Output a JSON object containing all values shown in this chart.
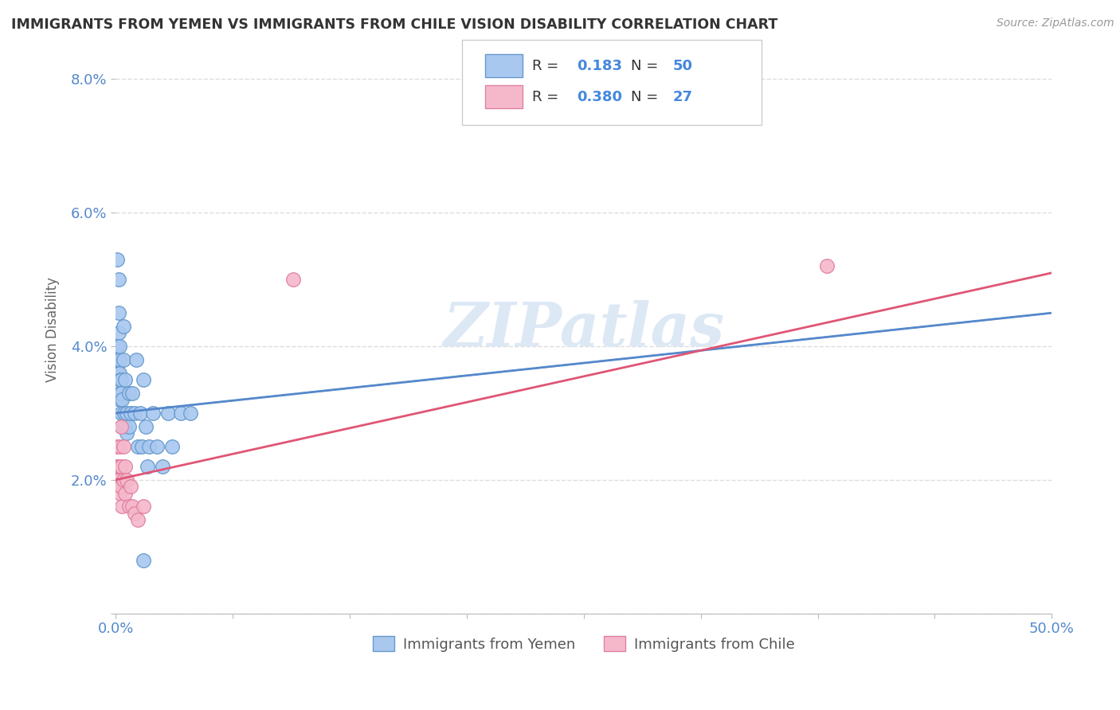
{
  "title": "IMMIGRANTS FROM YEMEN VS IMMIGRANTS FROM CHILE VISION DISABILITY CORRELATION CHART",
  "source": "Source: ZipAtlas.com",
  "ylabel": "Vision Disability",
  "xlim": [
    0.0,
    0.5
  ],
  "ylim": [
    0.0,
    0.085
  ],
  "xticks": [
    0.0,
    0.0625,
    0.125,
    0.1875,
    0.25,
    0.3125,
    0.375,
    0.4375,
    0.5
  ],
  "xtick_labels": [
    "0.0%",
    "",
    "",
    "",
    "",
    "",
    "",
    "",
    "50.0%"
  ],
  "yticks": [
    0.0,
    0.02,
    0.04,
    0.06,
    0.08
  ],
  "ytick_labels": [
    "",
    "2.0%",
    "4.0%",
    "6.0%",
    "8.0%"
  ],
  "blue_color": "#a8c8f0",
  "blue_edge": "#6699cc",
  "pink_color": "#f5b8cb",
  "pink_edge": "#e080a0",
  "line_blue": "#5588cc",
  "line_pink": "#e05575",
  "background_color": "#ffffff",
  "grid_color": "#dddddd",
  "yemen_x": [
    0.0005,
    0.0005,
    0.0008,
    0.001,
    0.001,
    0.001,
    0.0012,
    0.0015,
    0.0015,
    0.0018,
    0.002,
    0.002,
    0.002,
    0.002,
    0.0022,
    0.0025,
    0.0025,
    0.003,
    0.003,
    0.003,
    0.0035,
    0.0035,
    0.004,
    0.004,
    0.0045,
    0.005,
    0.005,
    0.006,
    0.006,
    0.007,
    0.007,
    0.008,
    0.009,
    0.01,
    0.011,
    0.012,
    0.013,
    0.014,
    0.015,
    0.016,
    0.017,
    0.018,
    0.02,
    0.022,
    0.025,
    0.028,
    0.03,
    0.035,
    0.04,
    0.015
  ],
  "yemen_y": [
    0.038,
    0.04,
    0.037,
    0.053,
    0.04,
    0.038,
    0.036,
    0.05,
    0.045,
    0.042,
    0.038,
    0.036,
    0.034,
    0.032,
    0.04,
    0.035,
    0.033,
    0.035,
    0.033,
    0.03,
    0.032,
    0.028,
    0.043,
    0.038,
    0.03,
    0.035,
    0.028,
    0.03,
    0.027,
    0.033,
    0.028,
    0.03,
    0.033,
    0.03,
    0.038,
    0.025,
    0.03,
    0.025,
    0.035,
    0.028,
    0.022,
    0.025,
    0.03,
    0.025,
    0.022,
    0.03,
    0.025,
    0.03,
    0.03,
    0.008
  ],
  "chile_x": [
    0.0005,
    0.0008,
    0.001,
    0.0012,
    0.0015,
    0.0015,
    0.002,
    0.002,
    0.002,
    0.0025,
    0.003,
    0.003,
    0.003,
    0.0035,
    0.004,
    0.004,
    0.005,
    0.005,
    0.006,
    0.007,
    0.008,
    0.009,
    0.01,
    0.012,
    0.015,
    0.095,
    0.38
  ],
  "chile_y": [
    0.022,
    0.021,
    0.025,
    0.02,
    0.02,
    0.022,
    0.025,
    0.022,
    0.019,
    0.018,
    0.028,
    0.022,
    0.019,
    0.016,
    0.025,
    0.02,
    0.022,
    0.018,
    0.02,
    0.016,
    0.019,
    0.016,
    0.015,
    0.014,
    0.016,
    0.05,
    0.052
  ]
}
